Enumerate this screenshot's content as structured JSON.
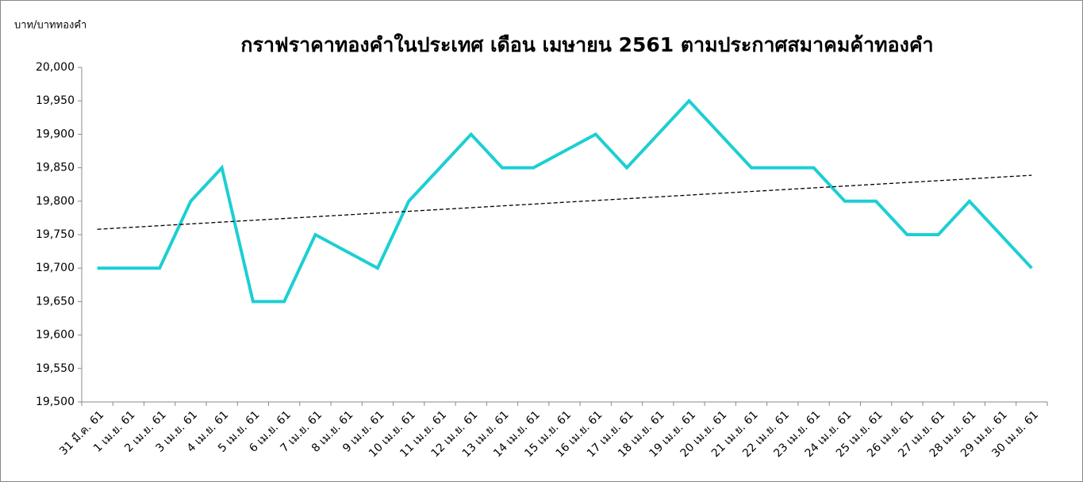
{
  "chart_data": {
    "type": "line",
    "title": "กราฟราคาทองคำในประเทศ เดือน เมษายน 2561 ตามประกาศสมาคมค้าทองคำ",
    "y_label": "บาท/บาททองคำ",
    "categories": [
      "31 มี.ค. 61",
      "1 เม.ย. 61",
      "2 เม.ย. 61",
      "3 เม.ย. 61",
      "4 เม.ย. 61",
      "5 เม.ย. 61",
      "6 เม.ย. 61",
      "7 เม.ย. 61",
      "8 เม.ย. 61",
      "9 เม.ย. 61",
      "10 เม.ย. 61",
      "11 เม.ย. 61",
      "12 เม.ย. 61",
      "13 เม.ย. 61",
      "14 เม.ย. 61",
      "15 เม.ย. 61",
      "16 เม.ย. 61",
      "17 เม.ย. 61",
      "18 เม.ย. 61",
      "19 เม.ย. 61",
      "20 เม.ย. 61",
      "21 เม.ย. 61",
      "22 เม.ย. 61",
      "23 เม.ย. 61",
      "24 เม.ย. 61",
      "25 เม.ย. 61",
      "26 เม.ย. 61",
      "27 เม.ย. 61",
      "28 เม.ย. 61",
      "29 เม.ย. 61",
      "30 เม.ย. 61"
    ],
    "values": [
      19700,
      19700,
      19700,
      19800,
      19850,
      19650,
      19650,
      19750,
      19725,
      19700,
      19800,
      19850,
      19900,
      19850,
      19850,
      19875,
      19900,
      19850,
      19900,
      19950,
      19900,
      19850,
      19850,
      19850,
      19800,
      19800,
      19750,
      19750,
      19800,
      19750,
      19700
    ],
    "color": "#1ccfd3",
    "trendline": true,
    "ylim": [
      19500,
      20000
    ],
    "yticks": [
      {
        "value": 19500,
        "label": "19,500"
      },
      {
        "value": 19550,
        "label": "19,550"
      },
      {
        "value": 19600,
        "label": "19,600"
      },
      {
        "value": 19650,
        "label": "19,650"
      },
      {
        "value": 19700,
        "label": "19,700"
      },
      {
        "value": 19750,
        "label": "19,750"
      },
      {
        "value": 19800,
        "label": "19,800"
      },
      {
        "value": 19850,
        "label": "19,850"
      },
      {
        "value": 19900,
        "label": "19,900"
      },
      {
        "value": 19950,
        "label": "19,950"
      },
      {
        "value": 20000,
        "label": "20,000"
      }
    ],
    "grid": false
  }
}
